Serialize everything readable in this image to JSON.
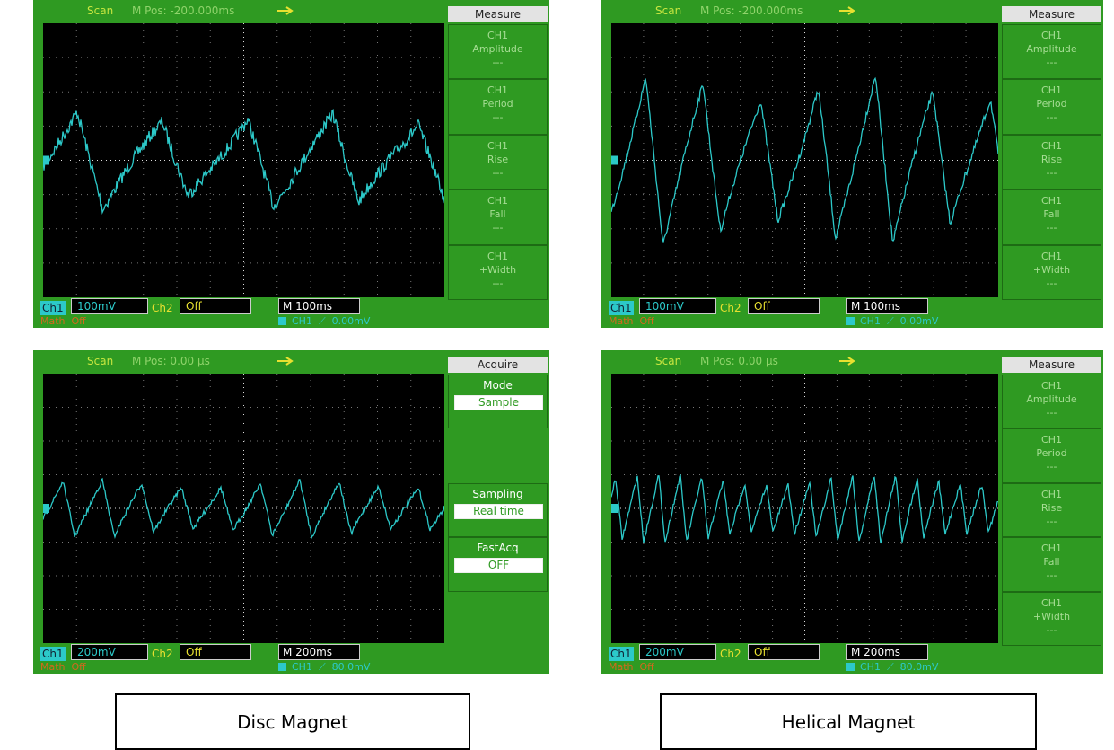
{
  "panels": [
    {
      "header": {
        "mode": "Scan",
        "position": "M Pos: -200.000ms"
      },
      "menu": {
        "title": "Measure",
        "items": [
          {
            "channel": "CH1",
            "label": "Amplitude",
            "value": "---"
          },
          {
            "channel": "CH1",
            "label": "Period",
            "value": "---"
          },
          {
            "channel": "CH1",
            "label": "Rise",
            "value": "---"
          },
          {
            "channel": "CH1",
            "label": "Fall",
            "value": "---"
          },
          {
            "channel": "CH1",
            "label": "+Width",
            "value": "---"
          }
        ]
      },
      "footer": {
        "ch1": "Ch1",
        "ch1_scale": "100mV",
        "ch2": "Ch2",
        "ch2_state": "Off",
        "timebase": "M 100ms",
        "math": "Math  Off",
        "trigger": "CH1  ⟋  0.00mV"
      }
    },
    {
      "header": {
        "mode": "Scan",
        "position": "M Pos: -200.000ms"
      },
      "menu": {
        "title": "Measure",
        "items": [
          {
            "channel": "CH1",
            "label": "Amplitude",
            "value": "---"
          },
          {
            "channel": "CH1",
            "label": "Period",
            "value": "---"
          },
          {
            "channel": "CH1",
            "label": "Rise",
            "value": "---"
          },
          {
            "channel": "CH1",
            "label": "Fall",
            "value": "---"
          },
          {
            "channel": "CH1",
            "label": "+Width",
            "value": "---"
          }
        ]
      },
      "footer": {
        "ch1": "Ch1",
        "ch1_scale": "100mV",
        "ch2": "Ch2",
        "ch2_state": "Off",
        "timebase": "M 100ms",
        "math": "Math  Off",
        "trigger": "CH1  ⟋  0.00mV"
      }
    },
    {
      "header": {
        "mode": "Scan",
        "position": "M Pos: 0.00 µs"
      },
      "menu": {
        "title": "Acquire",
        "items": [
          {
            "label": "Mode",
            "value": "Sample"
          },
          {
            "label": "Sampling",
            "value": "Real time"
          },
          {
            "label": "FastAcq",
            "value": "OFF"
          }
        ]
      },
      "footer": {
        "ch1": "Ch1",
        "ch1_scale": "200mV",
        "ch2": "Ch2",
        "ch2_state": "Off",
        "timebase": "M 200ms",
        "math": "Math  Off",
        "trigger": "CH1  ⟋  80.0mV"
      }
    },
    {
      "header": {
        "mode": "Scan",
        "position": "M Pos: 0.00 µs"
      },
      "menu": {
        "title": "Measure",
        "items": [
          {
            "channel": "CH1",
            "label": "Amplitude",
            "value": "---"
          },
          {
            "channel": "CH1",
            "label": "Period",
            "value": "---"
          },
          {
            "channel": "CH1",
            "label": "Rise",
            "value": "---"
          },
          {
            "channel": "CH1",
            "label": "Fall",
            "value": "---"
          },
          {
            "channel": "CH1",
            "label": "+Width",
            "value": "---"
          }
        ]
      },
      "footer": {
        "ch1": "Ch1",
        "ch1_scale": "200mV",
        "ch2": "Ch2",
        "ch2_state": "Off",
        "timebase": "M 200ms",
        "math": "Math  Off",
        "trigger": "CH1  ⟋  80.0mV"
      }
    }
  ],
  "captions": [
    "Disc Magnet",
    "Helical Magnet"
  ]
}
